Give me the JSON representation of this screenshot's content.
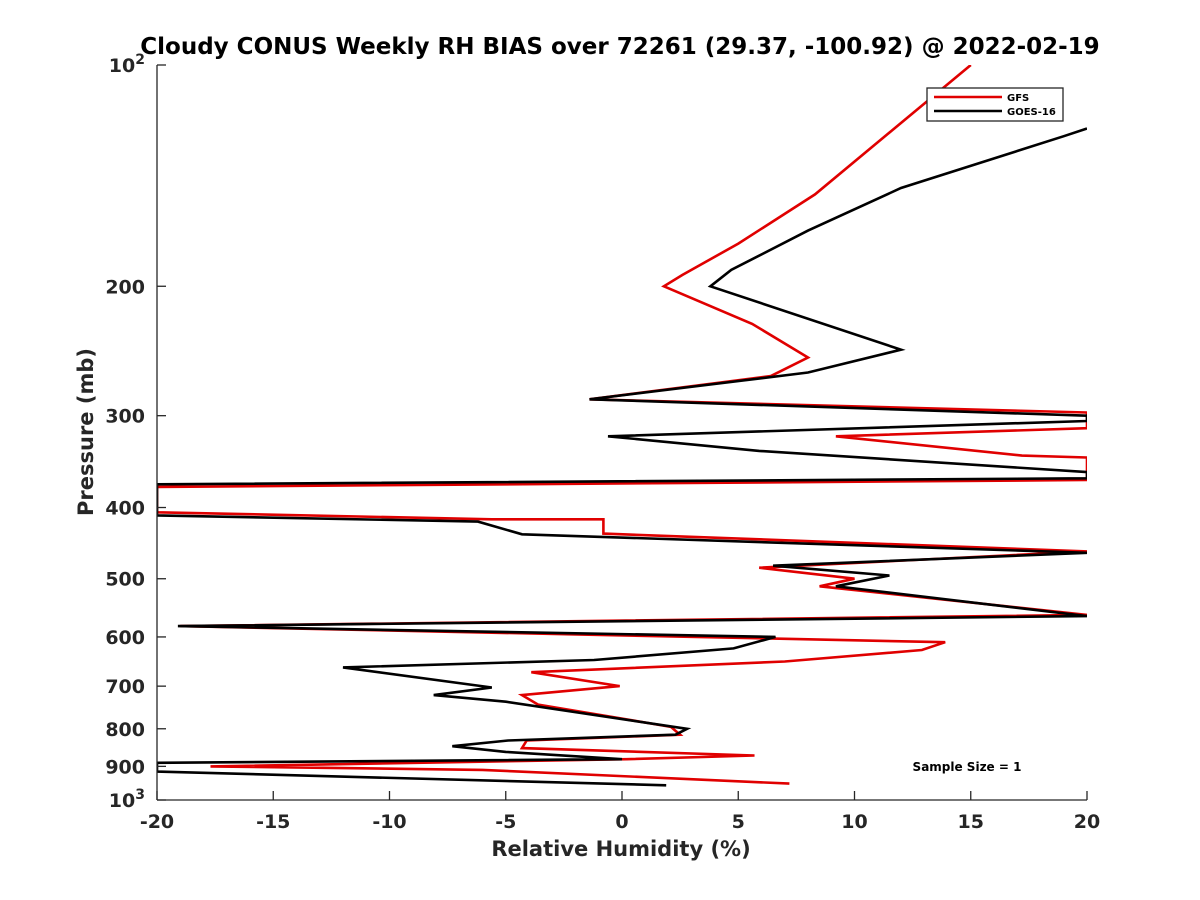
{
  "chart_data": {
    "type": "line",
    "title": "Cloudy CONUS Weekly RH BIAS over 72261 (29.37, -100.92) @ 2022-02-19",
    "xlabel": "Relative Humidity (%)",
    "ylabel": "Pressure (mb)",
    "xlim": [
      -20,
      20
    ],
    "ylim": [
      100,
      1000
    ],
    "y_scale": "log",
    "y_reversed": true,
    "grid": false,
    "legend_position": "top-right",
    "x_ticks": [
      "-20",
      "-15",
      "-10",
      "-5",
      "0",
      "5",
      "10",
      "15",
      "20"
    ],
    "y_ticks": [
      {
        "value": 100,
        "base": "10",
        "exp": "2"
      },
      {
        "value": 200,
        "label": "200"
      },
      {
        "value": 300,
        "label": "300"
      },
      {
        "value": 400,
        "label": "400"
      },
      {
        "value": 500,
        "label": "500"
      },
      {
        "value": 600,
        "label": "600"
      },
      {
        "value": 700,
        "label": "700"
      },
      {
        "value": 800,
        "label": "800"
      },
      {
        "value": 900,
        "label": "900"
      },
      {
        "value": 1000,
        "base": "10",
        "exp": "3"
      }
    ],
    "annotation": "Sample Size = 1",
    "series": [
      {
        "name": "GFS",
        "color": "#e00000",
        "points": [
          {
            "rh": 15.0,
            "p": 100
          },
          {
            "rh": 8.3,
            "p": 150
          },
          {
            "rh": 5.0,
            "p": 175
          },
          {
            "rh": 2.6,
            "p": 193
          },
          {
            "rh": 1.8,
            "p": 200
          },
          {
            "rh": 5.6,
            "p": 225
          },
          {
            "rh": 8.0,
            "p": 250
          },
          {
            "rh": 6.4,
            "p": 265
          },
          {
            "rh": -1.4,
            "p": 285
          },
          {
            "rh": 20,
            "p": 297
          },
          {
            "rh": 20,
            "p": 297
          },
          {
            "rh": 20,
            "p": 312
          },
          {
            "rh": 9.2,
            "p": 320
          },
          {
            "rh": 17.2,
            "p": 340
          },
          {
            "rh": 20,
            "p": 342
          },
          {
            "rh": 20,
            "p": 367
          },
          {
            "rh": -20,
            "p": 375
          },
          {
            "rh": -20,
            "p": 406
          },
          {
            "rh": -5.6,
            "p": 415
          },
          {
            "rh": -0.8,
            "p": 415
          },
          {
            "rh": -0.8,
            "p": 434
          },
          {
            "rh": 20,
            "p": 459
          },
          {
            "rh": 5.9,
            "p": 483
          },
          {
            "rh": 10.0,
            "p": 500
          },
          {
            "rh": 8.5,
            "p": 512
          },
          {
            "rh": 20,
            "p": 560
          },
          {
            "rh": -19.0,
            "p": 580
          },
          {
            "rh": 13.9,
            "p": 610
          },
          {
            "rh": 12.9,
            "p": 625
          },
          {
            "rh": 7.0,
            "p": 648
          },
          {
            "rh": -3.9,
            "p": 670
          },
          {
            "rh": -0.1,
            "p": 700
          },
          {
            "rh": -4.3,
            "p": 720
          },
          {
            "rh": -3.6,
            "p": 742
          },
          {
            "rh": 2.1,
            "p": 795
          },
          {
            "rh": 2.5,
            "p": 815
          },
          {
            "rh": -4.1,
            "p": 830
          },
          {
            "rh": -4.3,
            "p": 850
          },
          {
            "rh": 5.7,
            "p": 870
          },
          {
            "rh": 0.2,
            "p": 880
          },
          {
            "rh": -17.7,
            "p": 900
          },
          {
            "rh": -6.0,
            "p": 910
          },
          {
            "rh": 7.2,
            "p": 950
          }
        ]
      },
      {
        "name": "GOES-16",
        "color": "#000000",
        "points": [
          {
            "rh": 20,
            "p": 122
          },
          {
            "rh": 19.0,
            "p": 125
          },
          {
            "rh": 12.0,
            "p": 147
          },
          {
            "rh": 8.0,
            "p": 168
          },
          {
            "rh": 4.7,
            "p": 190
          },
          {
            "rh": 3.8,
            "p": 200
          },
          {
            "rh": 12.0,
            "p": 244
          },
          {
            "rh": 8.0,
            "p": 262
          },
          {
            "rh": -1.4,
            "p": 285
          },
          {
            "rh": 20,
            "p": 300
          },
          {
            "rh": 20,
            "p": 305
          },
          {
            "rh": -0.6,
            "p": 320
          },
          {
            "rh": 5.9,
            "p": 335
          },
          {
            "rh": 20,
            "p": 358
          },
          {
            "rh": 20,
            "p": 360
          },
          {
            "rh": 20,
            "p": 365
          },
          {
            "rh": -20,
            "p": 372
          },
          {
            "rh": -20,
            "p": 410
          },
          {
            "rh": -6.2,
            "p": 418
          },
          {
            "rh": -4.3,
            "p": 435
          },
          {
            "rh": 20,
            "p": 461
          },
          {
            "rh": 6.5,
            "p": 480
          },
          {
            "rh": 11.5,
            "p": 495
          },
          {
            "rh": 9.2,
            "p": 512
          },
          {
            "rh": 20,
            "p": 562
          },
          {
            "rh": -19.1,
            "p": 580
          },
          {
            "rh": 6.6,
            "p": 600
          },
          {
            "rh": 4.8,
            "p": 622
          },
          {
            "rh": -1.2,
            "p": 645
          },
          {
            "rh": -12.0,
            "p": 660
          },
          {
            "rh": -5.6,
            "p": 703
          },
          {
            "rh": -8.1,
            "p": 720
          },
          {
            "rh": -5.0,
            "p": 735
          },
          {
            "rh": 2.8,
            "p": 800
          },
          {
            "rh": 2.3,
            "p": 815
          },
          {
            "rh": -4.9,
            "p": 830
          },
          {
            "rh": -7.3,
            "p": 845
          },
          {
            "rh": -5.0,
            "p": 860
          },
          {
            "rh": 0.0,
            "p": 880
          },
          {
            "rh": -20,
            "p": 890
          },
          {
            "rh": -20,
            "p": 915
          },
          {
            "rh": 1.9,
            "p": 955
          }
        ]
      }
    ]
  }
}
